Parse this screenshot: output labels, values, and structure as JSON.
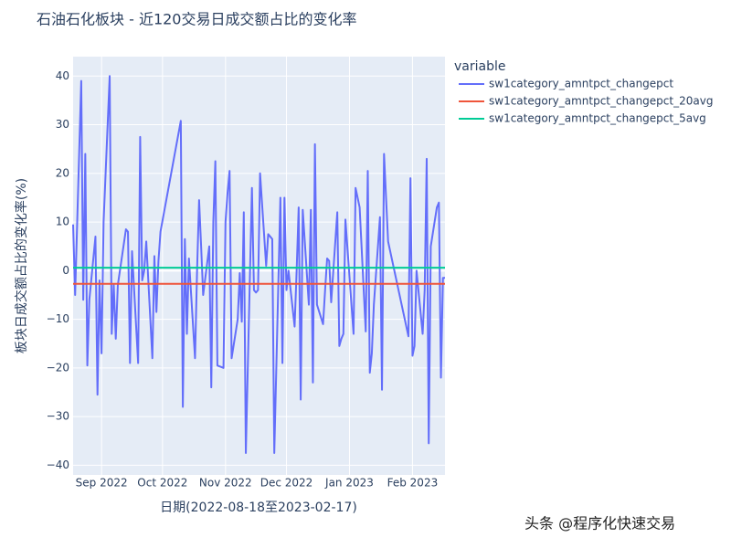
{
  "chart_data": {
    "type": "line",
    "title": "石油石化板块 - 近120交易日成交额占比的变化率",
    "x_label": "日期(2022-08-18至2023-02-17)",
    "y_label": "板块日成交额占比的变化率(%)",
    "legend_title": "variable",
    "legend": "right",
    "grid": true,
    "watermark": "头条 @程序化快速交易",
    "xlim": [
      "2022-08-18",
      "2023-02-17"
    ],
    "xticks": [
      {
        "value": "2022-09-01",
        "label": "Sep 2022"
      },
      {
        "value": "2022-10-01",
        "label": "Oct 2022"
      },
      {
        "value": "2022-11-01",
        "label": "Nov 2022"
      },
      {
        "value": "2022-12-01",
        "label": "Dec 2022"
      },
      {
        "value": "2023-01-01",
        "label": "Jan 2023"
      },
      {
        "value": "2023-02-01",
        "label": "Feb 2023"
      }
    ],
    "ylim": [
      -42,
      44
    ],
    "yticks": [
      {
        "value": -40,
        "label": "−40"
      },
      {
        "value": -30,
        "label": "−30"
      },
      {
        "value": -20,
        "label": "−20"
      },
      {
        "value": -10,
        "label": "−10"
      },
      0,
      10,
      20,
      30,
      40
    ],
    "x": [
      "2022-08-18",
      "2022-08-19",
      "2022-08-22",
      "2022-08-23",
      "2022-08-24",
      "2022-08-25",
      "2022-08-26",
      "2022-08-29",
      "2022-08-30",
      "2022-08-31",
      "2022-09-01",
      "2022-09-02",
      "2022-09-05",
      "2022-09-06",
      "2022-09-07",
      "2022-09-08",
      "2022-09-09",
      "2022-09-13",
      "2022-09-14",
      "2022-09-15",
      "2022-09-16",
      "2022-09-19",
      "2022-09-20",
      "2022-09-21",
      "2022-09-22",
      "2022-09-23",
      "2022-09-26",
      "2022-09-27",
      "2022-09-28",
      "2022-09-29",
      "2022-09-30",
      "2022-10-10",
      "2022-10-11",
      "2022-10-12",
      "2022-10-13",
      "2022-10-14",
      "2022-10-17",
      "2022-10-18",
      "2022-10-19",
      "2022-10-20",
      "2022-10-21",
      "2022-10-24",
      "2022-10-25",
      "2022-10-26",
      "2022-10-27",
      "2022-10-28",
      "2022-10-31",
      "2022-11-01",
      "2022-11-02",
      "2022-11-03",
      "2022-11-04",
      "2022-11-07",
      "2022-11-08",
      "2022-11-09",
      "2022-11-10",
      "2022-11-11",
      "2022-11-14",
      "2022-11-15",
      "2022-11-16",
      "2022-11-17",
      "2022-11-18",
      "2022-11-21",
      "2022-11-22",
      "2022-11-23",
      "2022-11-24",
      "2022-11-25",
      "2022-11-28",
      "2022-11-29",
      "2022-11-30",
      "2022-12-01",
      "2022-12-02",
      "2022-12-05",
      "2022-12-06",
      "2022-12-07",
      "2022-12-08",
      "2022-12-09",
      "2022-12-12",
      "2022-12-13",
      "2022-12-14",
      "2022-12-15",
      "2022-12-16",
      "2022-12-19",
      "2022-12-20",
      "2022-12-21",
      "2022-12-22",
      "2022-12-23",
      "2022-12-26",
      "2022-12-27",
      "2022-12-28",
      "2022-12-29",
      "2022-12-30",
      "2023-01-03",
      "2023-01-04",
      "2023-01-05",
      "2023-01-06",
      "2023-01-09",
      "2023-01-10",
      "2023-01-11",
      "2023-01-12",
      "2023-01-13",
      "2023-01-16",
      "2023-01-17",
      "2023-01-18",
      "2023-01-19",
      "2023-01-20",
      "2023-01-30",
      "2023-01-31",
      "2023-02-01",
      "2023-02-02",
      "2023-02-03",
      "2023-02-06",
      "2023-02-07",
      "2023-02-08",
      "2023-02-09",
      "2023-02-10",
      "2023-02-13",
      "2023-02-14",
      "2023-02-15",
      "2023-02-16",
      "2023-02-17"
    ],
    "series": [
      {
        "name": "sw1category_amntpct_changepct",
        "color": "#636efa",
        "values": [
          9.5,
          -5,
          39,
          -6,
          24,
          -19.5,
          -6,
          7,
          -25.5,
          -2,
          -17,
          10,
          40,
          -13,
          -3,
          -14,
          -3,
          8.5,
          8,
          -19,
          4,
          -19,
          27.5,
          -2,
          0,
          6,
          -18,
          3,
          -8.5,
          2,
          8,
          30.8,
          -28,
          6.5,
          -13,
          2.5,
          -18,
          0,
          14.5,
          5,
          -5,
          5,
          -24,
          10,
          22.5,
          -19.5,
          -20,
          10,
          16,
          20.5,
          -18,
          -10,
          -0.5,
          -10.5,
          12,
          -37.5,
          17,
          -4,
          -4.5,
          -4,
          20,
          1,
          7.5,
          7,
          6.5,
          -37.5,
          15,
          -19,
          15,
          -4,
          0,
          -11.5,
          0,
          13,
          -26.5,
          12.5,
          -7,
          12.5,
          -23,
          26,
          -7,
          -11,
          -4,
          2.5,
          2,
          -6.5,
          12,
          -15.5,
          -14,
          -13,
          10.5,
          -13,
          17,
          15,
          13,
          -12.5,
          20.5,
          -21,
          -17,
          -7,
          11,
          -24.5,
          24,
          15,
          6,
          -13.5,
          19,
          -17.5,
          -15.5,
          0,
          -13,
          -4,
          23,
          -35.5,
          5,
          13,
          14,
          -22,
          -1.5,
          -1.5
        ]
      },
      {
        "name": "sw1category_amntpct_changepct_20avg",
        "color": "#EF553B",
        "x": [
          "2022-08-18",
          "2023-02-17"
        ],
        "values": [
          -2.7,
          -2.7
        ]
      },
      {
        "name": "sw1category_amntpct_changepct_5avg",
        "color": "#00cc96",
        "x": [
          "2022-08-18",
          "2023-02-17"
        ],
        "values": [
          0.6,
          0.6
        ]
      }
    ]
  }
}
